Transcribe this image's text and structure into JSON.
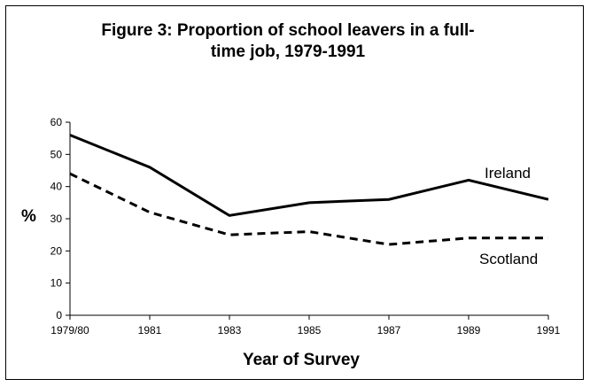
{
  "chart_data": {
    "type": "line",
    "title": "Figure 3: Proportion of school leavers in a full-time job, 1979-1991",
    "xlabel": "Year of Survey",
    "ylabel": "%",
    "categories": [
      "1979/80",
      "1981",
      "1983",
      "1985",
      "1987",
      "1989",
      "1991"
    ],
    "ylim": [
      0,
      60
    ],
    "yticks": [
      "0",
      "10",
      "20",
      "30",
      "40",
      "50",
      "60"
    ],
    "grid": false,
    "legend": "inline labels",
    "series": [
      {
        "name": "Ireland",
        "values": [
          56,
          46,
          31,
          35,
          36,
          42,
          36
        ],
        "color": "#000000",
        "style": "solid"
      },
      {
        "name": "Scotland",
        "values": [
          44,
          32,
          25,
          26,
          22,
          24,
          24
        ],
        "color": "#000000",
        "style": "dashed"
      }
    ]
  }
}
